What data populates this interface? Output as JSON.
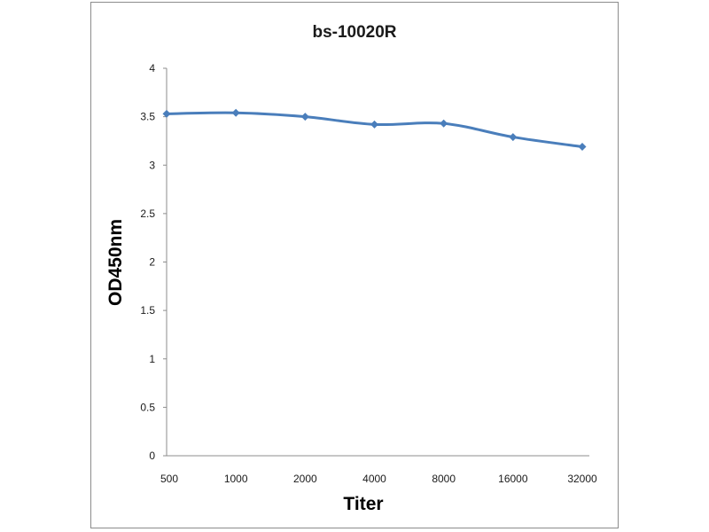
{
  "chart_data": {
    "type": "line",
    "title": "bs-10020R",
    "xlabel": "Titer",
    "ylabel": "OD450nm",
    "categories": [
      "500",
      "1000",
      "2000",
      "4000",
      "8000",
      "16000",
      "32000"
    ],
    "series": [
      {
        "values": [
          3.53,
          3.54,
          3.5,
          3.42,
          3.43,
          3.29,
          3.19
        ],
        "color": "#4a7ebb"
      }
    ],
    "ylim": [
      0,
      4
    ],
    "yticks": [
      "0",
      "0.5",
      "1",
      "1.5",
      "2",
      "2.5",
      "3",
      "3.5",
      "4"
    ],
    "grid": false,
    "legend": "none",
    "marker": "diamond"
  }
}
